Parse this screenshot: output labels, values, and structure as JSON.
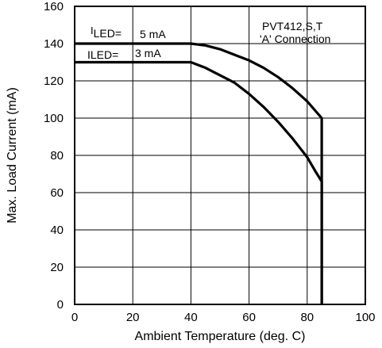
{
  "chart_data": {
    "type": "line",
    "xlabel": "Ambient Temperature (deg. C)",
    "ylabel": "Max. Load Current (mA)",
    "xlim": [
      0,
      100
    ],
    "ylim": [
      0,
      160
    ],
    "x_ticks": [
      0,
      20,
      40,
      60,
      80,
      100
    ],
    "y_ticks": [
      0,
      20,
      40,
      60,
      80,
      100,
      120,
      140,
      160
    ],
    "grid": true,
    "x_gridlines": [
      20,
      40,
      60,
      80
    ],
    "y_gridlines": [
      20,
      40,
      60,
      80,
      100,
      120,
      140
    ],
    "series": [
      {
        "name": "5 mA",
        "points": [
          [
            0,
            140
          ],
          [
            40,
            140
          ],
          [
            45,
            139
          ],
          [
            50,
            137
          ],
          [
            55,
            134
          ],
          [
            60,
            131
          ],
          [
            65,
            127
          ],
          [
            70,
            122
          ],
          [
            75,
            116
          ],
          [
            80,
            109
          ],
          [
            85,
            100
          ],
          [
            85,
            0
          ]
        ]
      },
      {
        "name": "3 mA",
        "points": [
          [
            0,
            130
          ],
          [
            40,
            130
          ],
          [
            45,
            127
          ],
          [
            50,
            123
          ],
          [
            55,
            119
          ],
          [
            60,
            113
          ],
          [
            65,
            106
          ],
          [
            70,
            98
          ],
          [
            75,
            89
          ],
          [
            80,
            79
          ],
          [
            83,
            71
          ],
          [
            85,
            66
          ],
          [
            85,
            0
          ]
        ]
      }
    ],
    "annotations": {
      "device": "PVT412,S,T",
      "connection": "'A' Connection",
      "led_label_sub": "I",
      "led_label_rest": "LED=",
      "led_label_flat": "ILED=",
      "led_5": "5 mA",
      "led_3": "3 mA"
    }
  }
}
